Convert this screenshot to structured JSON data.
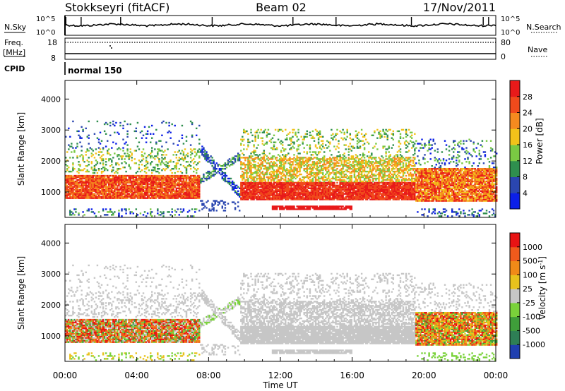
{
  "header": {
    "station": "Stokkseyri (fitACF)",
    "beam": "Beam 02",
    "date": "17/Nov/2011"
  },
  "sky_panel": {
    "left_label": "N.Sky",
    "right_label": "N.Search",
    "tick_top": "10^5",
    "tick_bottom": "10^0"
  },
  "freq_panel": {
    "left_label": "Freq.",
    "left_unit": "[MHz]",
    "left_ticks": [
      "18",
      "8"
    ],
    "right_label": "Nave",
    "right_ticks": [
      "80",
      "0"
    ]
  },
  "cpid_panel": {
    "label": "CPID",
    "mode": "normal 150"
  },
  "chart_data": [
    {
      "type": "heatmap",
      "quantity": "Power",
      "ylabel": "Slant Range [km]",
      "ylim": [
        180,
        4600
      ],
      "yticks": [
        "1000",
        "2000",
        "3000",
        "4000"
      ],
      "xlim_hours": [
        0,
        24
      ],
      "colorbar": {
        "label": "Power [dB]",
        "ticks": [
          "4",
          "8",
          "12",
          "16",
          "20",
          "24",
          "28"
        ],
        "colors": [
          "#0b1fe8",
          "#2a46b0",
          "#2f8f4e",
          "#7ac943",
          "#f2c21a",
          "#f58a1f",
          "#f04a1c",
          "#e81a1a"
        ]
      }
    },
    {
      "type": "heatmap",
      "quantity": "Velocity",
      "ylabel": "Slant Range [km]",
      "ylim": [
        180,
        4600
      ],
      "yticks": [
        "1000",
        "2000",
        "3000",
        "4000"
      ],
      "xlim_hours": [
        0,
        24
      ],
      "colorbar": {
        "label": "Velocity [m s",
        "label_sup": "-1",
        "label_end": "]",
        "ticks": [
          "1000",
          "500",
          "100",
          "25",
          "-25",
          "-100",
          "-500",
          "-1000"
        ],
        "colors": [
          "#1f3fb0",
          "#2e7f55",
          "#3f9e3a",
          "#7ad23a",
          "#c6c6c6",
          "#e8c21c",
          "#f08a18",
          "#ef5a1c",
          "#e81414"
        ]
      }
    }
  ],
  "x_axis": {
    "label": "Time UT",
    "ticks": [
      "00:00",
      "04:00",
      "08:00",
      "12:00",
      "16:00",
      "20:00",
      "00:00"
    ]
  },
  "colors": {
    "ground_scatter": "#c6c6c6",
    "axis": "#000000"
  }
}
